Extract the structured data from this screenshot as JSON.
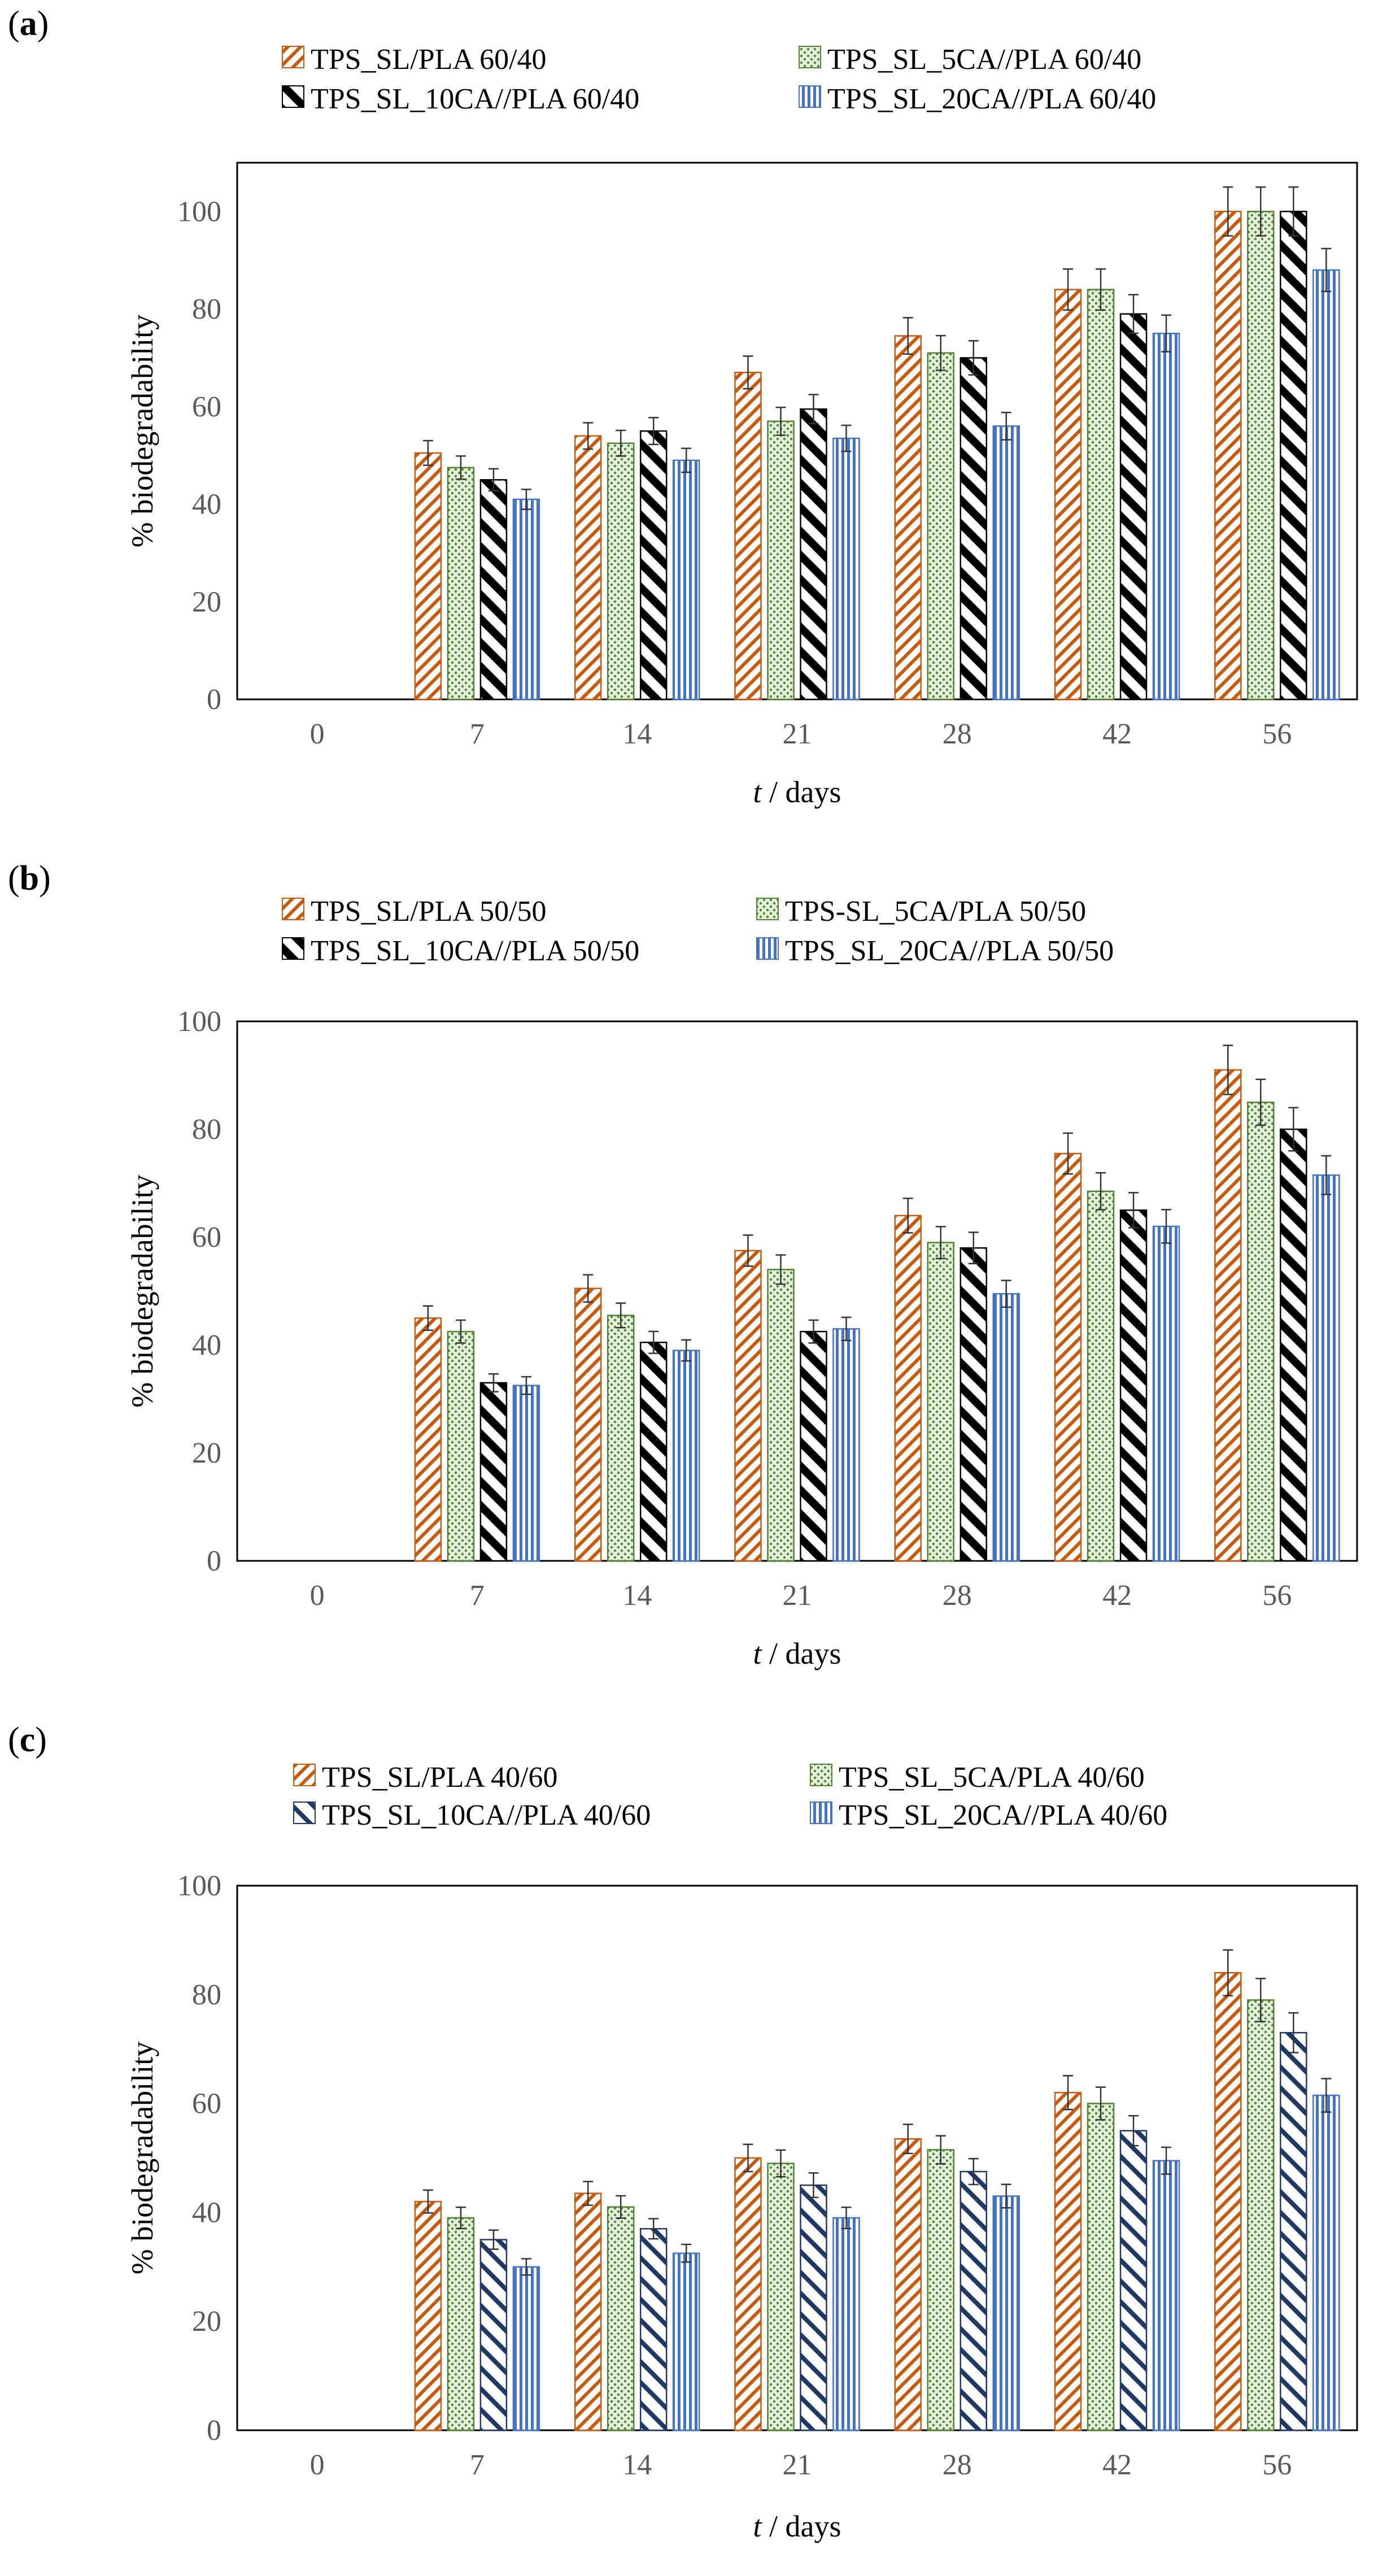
{
  "figure": {
    "chart_data": [
      {
        "type": "bar",
        "panel_label": "a",
        "categories": [
          "0",
          "7",
          "14",
          "21",
          "28",
          "42",
          "56"
        ],
        "xlabel_italic": "t",
        "xlabel": " / days",
        "ylabel": "% biodegradability",
        "ylim": [
          0,
          110
        ],
        "yticks": [
          "0",
          "20",
          "40",
          "60",
          "80",
          "100"
        ],
        "error_pct": 0.05,
        "series": [
          {
            "name": "TPS_SL/PLA 60/40",
            "pattern": "diag",
            "color": "#C55A11",
            "values": [
              0,
              50.5,
              54,
              67,
              74.5,
              84,
              100
            ]
          },
          {
            "name": "TPS_SL_5CA//PLA 60/40",
            "pattern": "dots",
            "color": "#548235",
            "values": [
              0,
              47.5,
              52.5,
              57,
              71,
              84,
              100
            ]
          },
          {
            "name": "TPS_SL_10CA//PLA 60/40",
            "pattern": "bold",
            "color": "#000000",
            "values": [
              0,
              45,
              55,
              59.5,
              70,
              79,
              100
            ]
          },
          {
            "name": "TPS_SL_20CA//PLA 60/40",
            "pattern": "vert",
            "color": "#4472C4",
            "values": [
              0,
              41,
              49,
              53.5,
              56,
              75,
              88
            ]
          }
        ]
      },
      {
        "type": "bar",
        "panel_label": "b",
        "categories": [
          "0",
          "7",
          "14",
          "21",
          "28",
          "42",
          "56"
        ],
        "xlabel_italic": "t",
        "xlabel": " / days",
        "ylabel": "% biodegradability",
        "ylim": [
          0,
          100
        ],
        "yticks": [
          "0",
          "20",
          "40",
          "60",
          "80",
          "100"
        ],
        "error_pct": 0.05,
        "series": [
          {
            "name": "TPS_SL/PLA 50/50",
            "pattern": "diag",
            "color": "#C55A11",
            "values": [
              0,
              45,
              50.5,
              57.5,
              64,
              75.5,
              91
            ]
          },
          {
            "name": "TPS-SL_5CA/PLA 50/50",
            "pattern": "dots",
            "color": "#548235",
            "values": [
              0,
              42.5,
              45.5,
              54,
              59,
              68.5,
              85
            ]
          },
          {
            "name": "TPS_SL_10CA//PLA 50/50",
            "pattern": "bold",
            "color": "#000000",
            "values": [
              0,
              33,
              40.5,
              42.5,
              58,
              65,
              80
            ]
          },
          {
            "name": "TPS_SL_20CA//PLA 50/50",
            "pattern": "vert",
            "color": "#2F5597",
            "values": [
              0,
              32.5,
              39,
              43,
              49.5,
              62,
              71.5
            ]
          }
        ]
      },
      {
        "type": "bar",
        "panel_label": "c",
        "categories": [
          "0",
          "7",
          "14",
          "21",
          "28",
          "42",
          "56"
        ],
        "xlabel_italic": "t",
        "xlabel": " / days",
        "ylabel": "% biodegradability",
        "ylim": [
          0,
          100
        ],
        "yticks": [
          "0",
          "20",
          "40",
          "60",
          "80",
          "100"
        ],
        "error_pct": 0.05,
        "series": [
          {
            "name": "TPS_SL/PLA 40/60",
            "pattern": "diag",
            "color": "#C55A11",
            "values": [
              0,
              42,
              43.5,
              50,
              53.5,
              62,
              84
            ]
          },
          {
            "name": "TPS_SL_5CA/PLA 40/60",
            "pattern": "dots",
            "color": "#548235",
            "values": [
              0,
              39,
              41,
              49,
              51.5,
              60,
              79
            ]
          },
          {
            "name": "TPS_SL_10CA//PLA 40/60",
            "pattern": "navy",
            "color": "#1F3864",
            "values": [
              0,
              35,
              37,
              45,
              47.5,
              55,
              73
            ]
          },
          {
            "name": "TPS_SL_20CA//PLA 40/60",
            "pattern": "vert",
            "color": "#2E75B6",
            "values": [
              0,
              30,
              32.5,
              39,
              43,
              49.5,
              61.5
            ]
          }
        ]
      }
    ]
  }
}
